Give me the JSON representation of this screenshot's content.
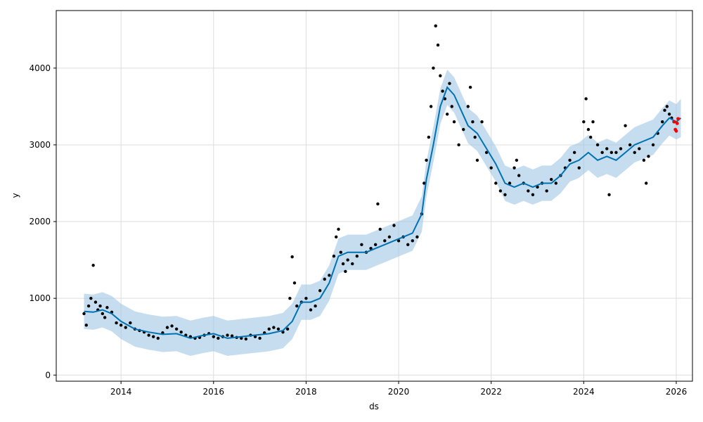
{
  "chart_data": {
    "type": "scatter",
    "xlabel": "ds",
    "ylabel": "y",
    "xlim": [
      2012.6,
      2026.35
    ],
    "ylim": [
      -80,
      4750
    ],
    "grid": true,
    "x_ticks": [
      2014,
      2016,
      2018,
      2020,
      2022,
      2024,
      2026
    ],
    "x_tick_labels": [
      "2014",
      "2016",
      "2018",
      "2020",
      "2022",
      "2024",
      "2026"
    ],
    "y_ticks": [
      0,
      1000,
      2000,
      3000,
      4000
    ],
    "y_tick_labels": [
      "0",
      "1000",
      "2000",
      "3000",
      "4000"
    ],
    "colors": {
      "observed": "#000000",
      "forecast_line": "#0072B2",
      "interval": "#9ec7e4",
      "recent": "#ff0000",
      "grid": "#dddddd",
      "axes": "#000000"
    },
    "forecast": {
      "x": [
        2013.2,
        2013.4,
        2013.6,
        2013.8,
        2014.0,
        2014.3,
        2014.6,
        2014.9,
        2015.2,
        2015.5,
        2015.8,
        2016.0,
        2016.3,
        2016.6,
        2016.9,
        2017.2,
        2017.5,
        2017.7,
        2017.9,
        2018.1,
        2018.3,
        2018.5,
        2018.7,
        2018.9,
        2019.1,
        2019.3,
        2019.5,
        2019.7,
        2019.9,
        2020.1,
        2020.3,
        2020.5,
        2020.6,
        2020.75,
        2020.9,
        2021.05,
        2021.2,
        2021.35,
        2021.5,
        2021.7,
        2021.9,
        2022.1,
        2022.3,
        2022.5,
        2022.7,
        2022.9,
        2023.1,
        2023.3,
        2023.5,
        2023.7,
        2023.9,
        2024.1,
        2024.3,
        2024.5,
        2024.7,
        2024.9,
        2025.1,
        2025.3,
        2025.5,
        2025.7,
        2025.85,
        2026.0,
        2026.1
      ],
      "yhat": [
        830,
        820,
        850,
        800,
        700,
        600,
        560,
        530,
        540,
        480,
        520,
        540,
        480,
        500,
        520,
        540,
        580,
        700,
        950,
        950,
        1000,
        1200,
        1550,
        1600,
        1600,
        1600,
        1650,
        1700,
        1750,
        1800,
        1850,
        2100,
        2550,
        3000,
        3500,
        3750,
        3650,
        3450,
        3250,
        3150,
        2950,
        2750,
        2500,
        2450,
        2500,
        2450,
        2500,
        2500,
        2600,
        2750,
        2800,
        2900,
        2800,
        2850,
        2800,
        2900,
        3000,
        3050,
        3100,
        3250,
        3350,
        3300,
        3350
      ],
      "yhat_lower": [
        600,
        590,
        620,
        570,
        470,
        370,
        330,
        300,
        310,
        250,
        290,
        310,
        250,
        270,
        290,
        310,
        350,
        470,
        720,
        720,
        770,
        970,
        1320,
        1370,
        1370,
        1370,
        1420,
        1470,
        1520,
        1570,
        1620,
        1870,
        2320,
        2770,
        3270,
        3520,
        3420,
        3220,
        3020,
        2920,
        2720,
        2520,
        2270,
        2220,
        2270,
        2220,
        2270,
        2270,
        2370,
        2520,
        2570,
        2670,
        2570,
        2620,
        2570,
        2670,
        2770,
        2820,
        2870,
        3020,
        3120,
        3070,
        3100
      ],
      "yhat_upper": [
        1060,
        1050,
        1080,
        1030,
        930,
        830,
        790,
        760,
        770,
        710,
        750,
        770,
        710,
        730,
        750,
        770,
        810,
        930,
        1180,
        1180,
        1230,
        1430,
        1780,
        1830,
        1830,
        1830,
        1880,
        1930,
        1980,
        2030,
        2080,
        2330,
        2780,
        3230,
        3730,
        3980,
        3880,
        3680,
        3480,
        3380,
        3180,
        2980,
        2730,
        2680,
        2730,
        2680,
        2730,
        2730,
        2830,
        2980,
        3030,
        3130,
        3030,
        3080,
        3030,
        3130,
        3230,
        3280,
        3330,
        3480,
        3580,
        3530,
        3600
      ]
    },
    "observed": {
      "x": [
        2013.2,
        2013.25,
        2013.3,
        2013.35,
        2013.4,
        2013.45,
        2013.5,
        2013.55,
        2013.6,
        2013.65,
        2013.7,
        2013.8,
        2013.9,
        2014.0,
        2014.1,
        2014.2,
        2014.3,
        2014.4,
        2014.5,
        2014.6,
        2014.7,
        2014.8,
        2014.9,
        2015.0,
        2015.1,
        2015.2,
        2015.3,
        2015.4,
        2015.5,
        2015.6,
        2015.7,
        2015.8,
        2015.9,
        2016.0,
        2016.1,
        2016.2,
        2016.3,
        2016.4,
        2016.5,
        2016.6,
        2016.7,
        2016.8,
        2016.9,
        2017.0,
        2017.1,
        2017.2,
        2017.3,
        2017.4,
        2017.5,
        2017.6,
        2017.65,
        2017.7,
        2017.75,
        2017.8,
        2017.9,
        2018.0,
        2018.1,
        2018.2,
        2018.3,
        2018.4,
        2018.5,
        2018.6,
        2018.65,
        2018.7,
        2018.75,
        2018.8,
        2018.85,
        2018.9,
        2019.0,
        2019.1,
        2019.2,
        2019.3,
        2019.4,
        2019.5,
        2019.55,
        2019.6,
        2019.7,
        2019.8,
        2019.9,
        2020.0,
        2020.1,
        2020.2,
        2020.3,
        2020.4,
        2020.5,
        2020.55,
        2020.6,
        2020.65,
        2020.7,
        2020.75,
        2020.8,
        2020.85,
        2020.9,
        2020.95,
        2021.0,
        2021.05,
        2021.1,
        2021.15,
        2021.2,
        2021.3,
        2021.4,
        2021.5,
        2021.55,
        2021.6,
        2021.65,
        2021.7,
        2021.8,
        2021.9,
        2022.0,
        2022.1,
        2022.2,
        2022.3,
        2022.4,
        2022.5,
        2022.55,
        2022.6,
        2022.7,
        2022.8,
        2022.9,
        2023.0,
        2023.1,
        2023.2,
        2023.3,
        2023.4,
        2023.5,
        2023.6,
        2023.7,
        2023.8,
        2023.9,
        2024.0,
        2024.05,
        2024.1,
        2024.15,
        2024.2,
        2024.3,
        2024.4,
        2024.5,
        2024.55,
        2024.6,
        2024.7,
        2024.8,
        2024.9,
        2025.0,
        2025.1,
        2025.2,
        2025.3,
        2025.35,
        2025.4,
        2025.5,
        2025.6,
        2025.7,
        2025.75,
        2025.8,
        2025.85,
        2025.9,
        2025.95
      ],
      "y": [
        800,
        650,
        900,
        1000,
        1430,
        950,
        850,
        900,
        800,
        750,
        880,
        820,
        680,
        650,
        620,
        680,
        600,
        580,
        560,
        520,
        500,
        480,
        550,
        620,
        640,
        600,
        560,
        520,
        500,
        480,
        490,
        520,
        540,
        500,
        480,
        500,
        520,
        510,
        490,
        480,
        470,
        520,
        500,
        480,
        550,
        600,
        620,
        600,
        560,
        600,
        1000,
        1540,
        1200,
        900,
        950,
        1000,
        850,
        900,
        1100,
        1250,
        1300,
        1550,
        1800,
        1900,
        1600,
        1450,
        1350,
        1500,
        1450,
        1550,
        1700,
        1600,
        1650,
        1700,
        2230,
        1900,
        1750,
        1800,
        1950,
        1750,
        1800,
        1700,
        1750,
        1800,
        2100,
        2500,
        2800,
        3100,
        3500,
        4000,
        4550,
        4300,
        3900,
        3700,
        3600,
        3400,
        3800,
        3500,
        3300,
        3000,
        3200,
        3500,
        3750,
        3300,
        3100,
        2800,
        3300,
        2900,
        2700,
        2500,
        2400,
        2350,
        2500,
        2700,
        2800,
        2600,
        2500,
        2400,
        2350,
        2450,
        2500,
        2400,
        2550,
        2500,
        2600,
        2700,
        2800,
        2900,
        2700,
        3300,
        3600,
        3200,
        3100,
        3300,
        3000,
        2900,
        2950,
        2350,
        2900,
        2900,
        2950,
        3250,
        3000,
        2900,
        2950,
        2800,
        2500,
        2850,
        3000,
        3150,
        3300,
        3450,
        3500,
        3400,
        3350,
        3300
      ]
    },
    "recent": {
      "x": [
        2025.96,
        2025.98,
        2026.0,
        2026.02,
        2026.04
      ],
      "y": [
        3300,
        3200,
        3180,
        3280,
        3340
      ]
    }
  }
}
